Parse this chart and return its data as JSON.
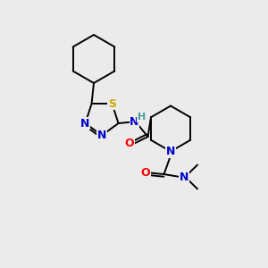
{
  "background_color": "#ebebeb",
  "atom_colors": {
    "C": "#000000",
    "N": "#0000cc",
    "S": "#ccaa00",
    "O": "#ff0000",
    "H": "#4a9a9a"
  },
  "bond_color": "#000000",
  "figsize": [
    3.0,
    3.0
  ],
  "dpi": 100
}
